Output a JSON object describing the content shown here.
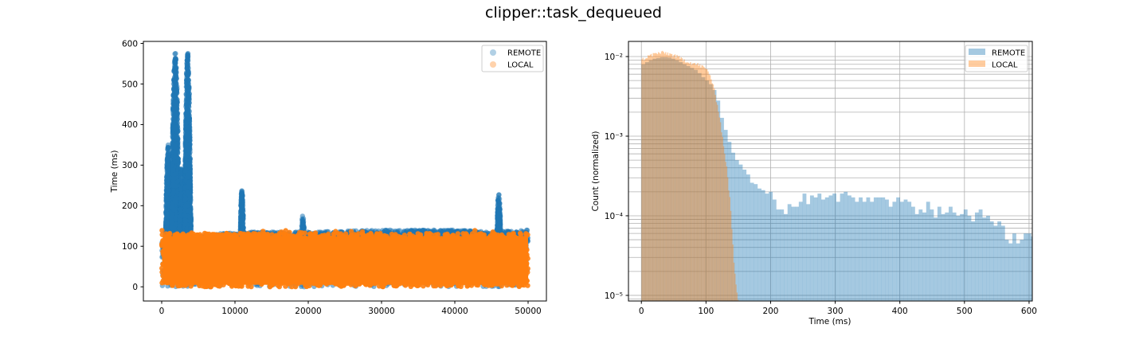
{
  "title": "clipper::task_dequeued",
  "colors": {
    "remote": "#1f77b4",
    "local": "#ff7f0e",
    "grid": "#b0b0b0"
  },
  "chart_data": [
    {
      "type": "scatter",
      "xlabel": "",
      "ylabel": "Time (ms)",
      "xlim": [
        -2500,
        52500
      ],
      "ylim": [
        -35,
        605
      ],
      "xticks": [
        0,
        10000,
        20000,
        30000,
        40000,
        50000
      ],
      "yticks": [
        0,
        100,
        200,
        300,
        400,
        500,
        600
      ],
      "grid": false,
      "legend": {
        "placement": "upper right",
        "entries": [
          "REMOTE",
          "LOCAL"
        ]
      },
      "series": [
        {
          "name": "REMOTE",
          "x_range": [
            0,
            50000
          ],
          "baseline_max_trend": [
            [
              0,
              110
            ],
            [
              5000,
              125
            ],
            [
              10000,
              135
            ],
            [
              20000,
              135
            ],
            [
              30000,
              140
            ],
            [
              40000,
              140
            ],
            [
              45000,
              135
            ],
            [
              50000,
              140
            ]
          ],
          "spikes": [
            {
              "x_range": [
                500,
                1300
              ],
              "peak": 350
            },
            {
              "x_range": [
                1300,
                2400
              ],
              "peak": 580
            },
            {
              "x_range": [
                2400,
                3100
              ],
              "peak": 300
            },
            {
              "x_range": [
                3100,
                4000
              ],
              "peak": 578
            },
            {
              "x_range": [
                10700,
                11200
              ],
              "peak": 242
            },
            {
              "x_range": [
                19000,
                19500
              ],
              "peak": 178
            },
            {
              "x_range": [
                45700,
                46300
              ],
              "peak": 230
            }
          ]
        },
        {
          "name": "LOCAL",
          "x_range": [
            0,
            50000
          ],
          "y_range": [
            0,
            140
          ]
        }
      ]
    },
    {
      "type": "bar",
      "subtype": "histogram",
      "xlabel": "Time (ms)",
      "ylabel": "Count (normalized)",
      "xlim": [
        -20,
        605
      ],
      "ylim": [
        8.5e-06,
        0.0155
      ],
      "yscale": "log",
      "xticks": [
        0,
        100,
        200,
        300,
        400,
        500,
        600
      ],
      "yticks": [
        "10⁻⁵",
        "10⁻⁴",
        "10⁻³",
        "10⁻²"
      ],
      "grid": true,
      "legend": {
        "placement": "upper right",
        "entries": [
          "REMOTE",
          "LOCAL"
        ]
      },
      "series": [
        {
          "name": "REMOTE",
          "bin_width": 5.8,
          "bin_start": 0,
          "values": [
            0.008,
            0.0085,
            0.009,
            0.0094,
            0.0096,
            0.0098,
            0.0098,
            0.0097,
            0.0094,
            0.009,
            0.0085,
            0.008,
            0.0076,
            0.0072,
            0.0068,
            0.0062,
            0.0055,
            0.005,
            0.0045,
            0.0038,
            0.0028,
            0.0017,
            0.0012,
            0.00085,
            0.00062,
            0.0005,
            0.00044,
            0.00038,
            0.00033,
            0.00026,
            0.00025,
            0.00022,
            0.00021,
            0.00019,
            0.0002,
            0.00016,
            0.00012,
            0.00012,
            0.000105,
            0.00014,
            0.00013,
            0.00013,
            0.00015,
            0.00019,
            0.00014,
            0.00018,
            0.00017,
            0.00019,
            0.00016,
            0.00017,
            0.00018,
            0.00019,
            0.00015,
            0.00019,
            0.0002,
            0.00018,
            0.00017,
            0.00015,
            0.00017,
            0.00015,
            0.00017,
            0.00015,
            0.00017,
            0.00017,
            0.00017,
            0.00016,
            0.00013,
            0.00015,
            0.00017,
            0.00015,
            0.00016,
            0.00015,
            0.00013,
            0.000105,
            0.00012,
            0.00011,
            0.00015,
            0.00012,
            9.5e-05,
            0.00013,
            0.000105,
            0.00011,
            0.00013,
            0.00011,
            0.0001,
            0.000105,
            0.00012,
            0.0001,
            8.5e-05,
            0.00011,
            0.00012,
            9.5e-05,
            0.0001,
            8.5e-05,
            7.5e-05,
            8.5e-05,
            7.5e-05,
            5e-05,
            4.5e-05,
            6e-05,
            4.5e-05,
            5e-05,
            6e-05,
            6e-05,
            5.5e-05,
            4.5e-05,
            4e-05,
            4.5e-05,
            3.5e-05,
            8.5e-06
          ]
        },
        {
          "name": "LOCAL",
          "bin_width": 1.6,
          "bin_start": 0,
          "profile": [
            [
              0,
              0.009
            ],
            [
              10,
              0.01
            ],
            [
              20,
              0.0108
            ],
            [
              30,
              0.0112
            ],
            [
              40,
              0.011
            ],
            [
              50,
              0.0104
            ],
            [
              60,
              0.0095
            ],
            [
              70,
              0.0088
            ],
            [
              80,
              0.0082
            ],
            [
              90,
              0.0078
            ],
            [
              100,
              0.007
            ],
            [
              106,
              0.006
            ],
            [
              112,
              0.004
            ],
            [
              120,
              0.002
            ],
            [
              126,
              0.0009
            ],
            [
              132,
              0.0004
            ],
            [
              138,
              0.00013
            ],
            [
              144,
              2e-05
            ],
            [
              150,
              8.5e-06
            ]
          ]
        }
      ]
    }
  ]
}
